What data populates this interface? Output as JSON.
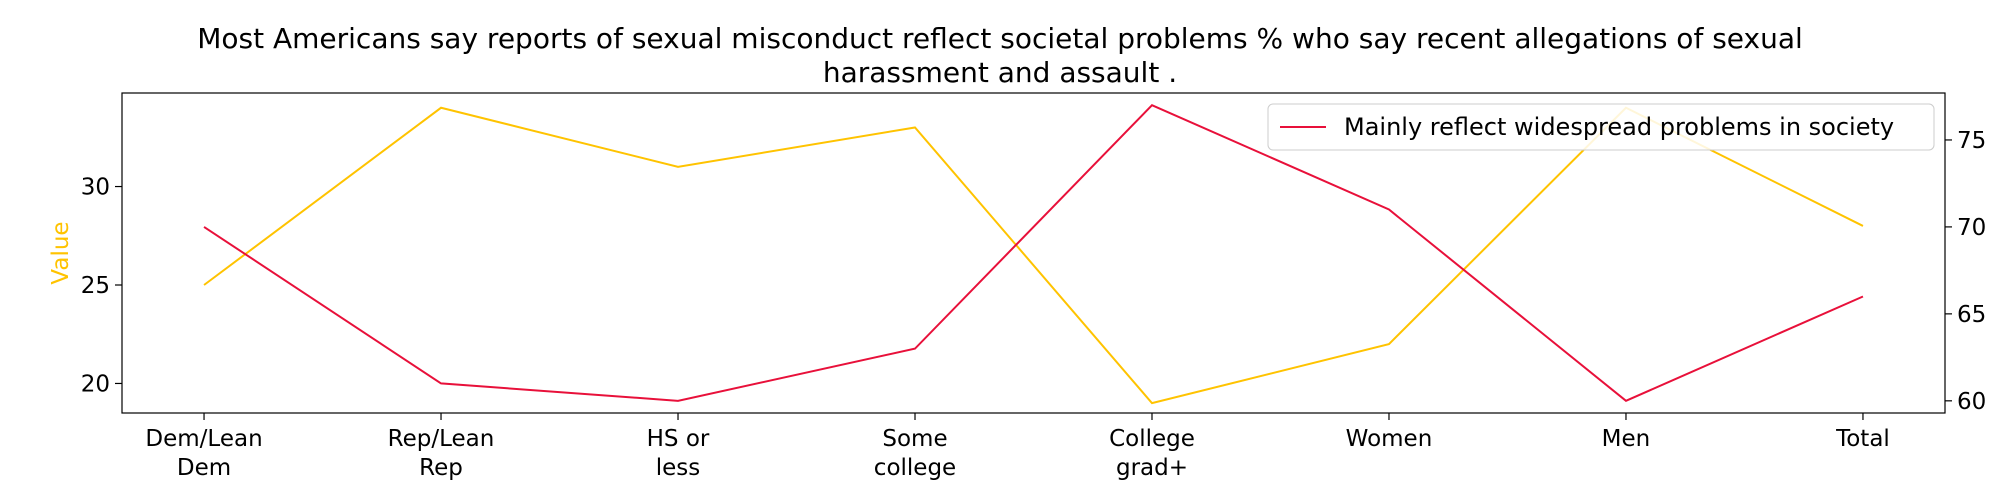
{
  "chart_data": {
    "type": "line",
    "title_lines": [
      "Most Americans say reports of sexual misconduct reflect societal problems % who say recent allegations of sexual",
      "harassment and assault ."
    ],
    "categories": [
      [
        "Dem/Lean",
        "Dem"
      ],
      [
        "Rep/Lean",
        "Rep"
      ],
      [
        "HS or",
        "less"
      ],
      [
        "Some",
        "college"
      ],
      [
        "College",
        "grad+"
      ],
      [
        "Women"
      ],
      [
        "Men"
      ],
      [
        "Total"
      ]
    ],
    "ylabel_left": "Value",
    "series": [
      {
        "axis": "left",
        "color": "#FFC300",
        "values": [
          25,
          34,
          31,
          33,
          19,
          22,
          34,
          28
        ]
      },
      {
        "axis": "right",
        "name": "Mainly reflect widespread problems in society",
        "color": "#E8103A",
        "values": [
          70,
          61,
          60,
          63,
          77,
          71,
          60,
          66
        ]
      }
    ],
    "y_left": {
      "range": [
        18.5,
        34.75
      ],
      "ticks": [
        20,
        25,
        30
      ]
    },
    "y_right": {
      "range": [
        59.3,
        77.7
      ],
      "ticks": [
        60,
        65,
        70,
        75
      ]
    },
    "legend": {
      "position": "top-right"
    },
    "grid": false,
    "colors": {
      "axis": "#000000",
      "ylabel_left": "#FFC300"
    }
  }
}
